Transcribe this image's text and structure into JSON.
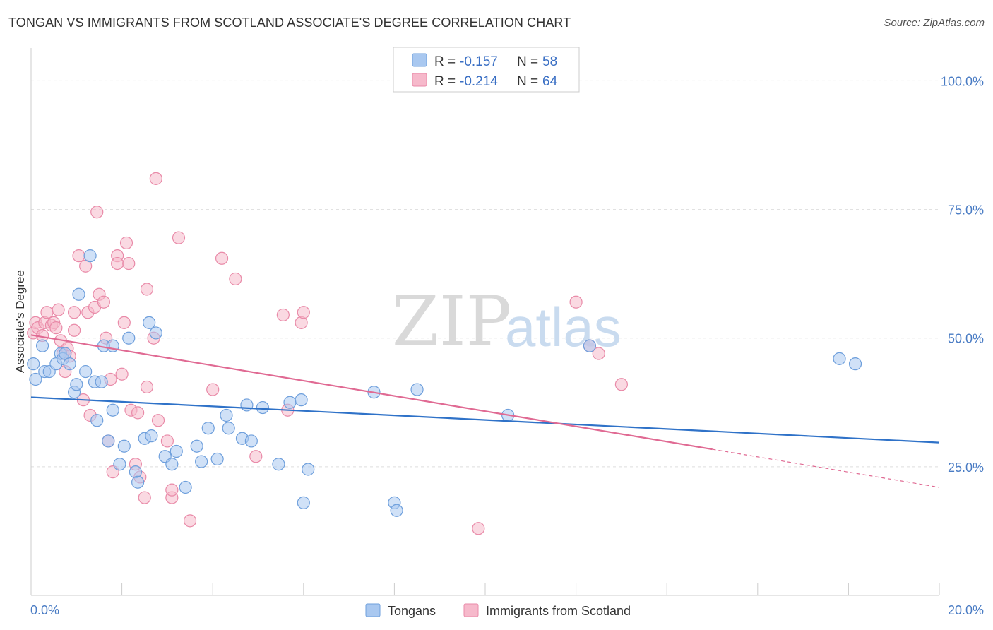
{
  "title": "TONGAN VS IMMIGRANTS FROM SCOTLAND ASSOCIATE'S DEGREE CORRELATION CHART",
  "source": "Source: ZipAtlas.com",
  "watermark": {
    "zip": "ZIP",
    "atlas": "atlas"
  },
  "colors": {
    "tongans_fill": "#a9c8f0",
    "tongans_stroke": "#6e9fdc",
    "tongans_line": "#2f72c8",
    "scotland_fill": "#f6b9cb",
    "scotland_stroke": "#e98aa8",
    "scotland_line": "#e06a93",
    "grid": "#dddddd",
    "tick_label": "#4a7cc4"
  },
  "legend": {
    "rows": [
      {
        "r_label": "R = ",
        "r_value": "-0.157",
        "n_label": "N = ",
        "n_value": "58",
        "series": "tongans"
      },
      {
        "r_label": "R = ",
        "r_value": "-0.214",
        "n_label": "N = ",
        "n_value": "64",
        "series": "scotland"
      }
    ]
  },
  "chart_data": {
    "type": "scatter",
    "xlabel": "",
    "ylabel": "Associate's Degree",
    "xlim": [
      0,
      20
    ],
    "ylim": [
      0,
      105
    ],
    "x_ticks": [
      {
        "value": 0,
        "label": "0.0%"
      },
      {
        "value": 20,
        "label": "20.0%"
      }
    ],
    "y_ticks": [
      {
        "value": 25,
        "label": "25.0%"
      },
      {
        "value": 50,
        "label": "50.0%"
      },
      {
        "value": 75,
        "label": "75.0%"
      },
      {
        "value": 100,
        "label": "100.0%"
      }
    ],
    "grid": true,
    "legend_position": "top-center",
    "series": [
      {
        "name": "Tongans",
        "key": "tongans",
        "trend": {
          "x0": 0,
          "y0": 38.5,
          "x1": 20,
          "y1": 29.7,
          "solid_until": 20
        },
        "points": [
          [
            0.05,
            45.0
          ],
          [
            0.1,
            42.0
          ],
          [
            0.25,
            48.5
          ],
          [
            0.3,
            43.5
          ],
          [
            0.4,
            43.5
          ],
          [
            0.55,
            45.0
          ],
          [
            0.65,
            47.0
          ],
          [
            0.7,
            46.0
          ],
          [
            0.75,
            47.0
          ],
          [
            0.85,
            45.0
          ],
          [
            0.95,
            39.5
          ],
          [
            1.0,
            41.0
          ],
          [
            1.05,
            58.5
          ],
          [
            1.2,
            43.5
          ],
          [
            1.3,
            66.0
          ],
          [
            1.4,
            41.5
          ],
          [
            1.45,
            34.0
          ],
          [
            1.55,
            41.5
          ],
          [
            1.6,
            48.5
          ],
          [
            1.7,
            30.0
          ],
          [
            1.8,
            36.0
          ],
          [
            1.8,
            48.5
          ],
          [
            1.95,
            25.5
          ],
          [
            2.05,
            29.0
          ],
          [
            2.15,
            50.0
          ],
          [
            2.3,
            24.0
          ],
          [
            2.35,
            22.0
          ],
          [
            2.5,
            30.5
          ],
          [
            2.6,
            53.0
          ],
          [
            2.65,
            31.0
          ],
          [
            2.75,
            51.0
          ],
          [
            2.95,
            27.0
          ],
          [
            3.1,
            25.5
          ],
          [
            3.2,
            28.0
          ],
          [
            3.4,
            21.0
          ],
          [
            3.65,
            29.0
          ],
          [
            3.75,
            26.0
          ],
          [
            3.9,
            32.5
          ],
          [
            4.1,
            26.5
          ],
          [
            4.3,
            35.0
          ],
          [
            4.35,
            32.5
          ],
          [
            4.65,
            30.5
          ],
          [
            4.75,
            37.0
          ],
          [
            4.85,
            30.0
          ],
          [
            5.1,
            36.5
          ],
          [
            5.45,
            25.5
          ],
          [
            5.7,
            37.5
          ],
          [
            5.95,
            38.0
          ],
          [
            6.0,
            18.0
          ],
          [
            6.1,
            24.5
          ],
          [
            7.55,
            39.5
          ],
          [
            8.0,
            18.0
          ],
          [
            8.05,
            16.5
          ],
          [
            8.5,
            40.0
          ],
          [
            10.5,
            35.0
          ],
          [
            12.3,
            48.5
          ],
          [
            17.8,
            46.0
          ],
          [
            18.15,
            45.0
          ]
        ]
      },
      {
        "name": "Immigrants from Scotland",
        "key": "scotland",
        "trend": {
          "x0": 0,
          "y0": 50.6,
          "x1": 20,
          "y1": 21.0,
          "solid_until": 15.0
        },
        "points": [
          [
            0.05,
            51.0
          ],
          [
            0.1,
            53.0
          ],
          [
            0.15,
            52.0
          ],
          [
            0.25,
            50.5
          ],
          [
            0.3,
            53.0
          ],
          [
            0.35,
            55.0
          ],
          [
            0.45,
            52.5
          ],
          [
            0.5,
            53.0
          ],
          [
            0.55,
            52.0
          ],
          [
            0.6,
            55.5
          ],
          [
            0.65,
            49.5
          ],
          [
            0.7,
            47.0
          ],
          [
            0.75,
            43.5
          ],
          [
            0.8,
            48.0
          ],
          [
            0.85,
            46.5
          ],
          [
            0.95,
            55.0
          ],
          [
            0.95,
            51.5
          ],
          [
            1.05,
            66.0
          ],
          [
            1.15,
            38.0
          ],
          [
            1.2,
            64.0
          ],
          [
            1.25,
            55.0
          ],
          [
            1.3,
            35.0
          ],
          [
            1.4,
            56.0
          ],
          [
            1.45,
            74.5
          ],
          [
            1.5,
            58.5
          ],
          [
            1.6,
            57.0
          ],
          [
            1.65,
            50.0
          ],
          [
            1.7,
            30.0
          ],
          [
            1.75,
            42.0
          ],
          [
            1.8,
            24.0
          ],
          [
            1.9,
            66.0
          ],
          [
            1.9,
            64.5
          ],
          [
            2.05,
            53.0
          ],
          [
            2.0,
            43.0
          ],
          [
            2.1,
            68.5
          ],
          [
            2.15,
            64.5
          ],
          [
            2.2,
            36.0
          ],
          [
            2.3,
            25.5
          ],
          [
            2.35,
            35.5
          ],
          [
            2.4,
            23.0
          ],
          [
            2.5,
            19.0
          ],
          [
            2.55,
            59.5
          ],
          [
            2.55,
            40.5
          ],
          [
            2.7,
            50.0
          ],
          [
            2.75,
            81.0
          ],
          [
            2.8,
            34.0
          ],
          [
            3.0,
            30.0
          ],
          [
            3.1,
            19.0
          ],
          [
            3.1,
            20.5
          ],
          [
            3.25,
            69.5
          ],
          [
            3.5,
            14.5
          ],
          [
            4.0,
            40.0
          ],
          [
            4.2,
            65.5
          ],
          [
            4.5,
            61.5
          ],
          [
            4.95,
            27.0
          ],
          [
            5.55,
            54.5
          ],
          [
            5.65,
            36.0
          ],
          [
            5.95,
            53.0
          ],
          [
            6.0,
            55.0
          ],
          [
            9.85,
            13.0
          ],
          [
            12.0,
            57.0
          ],
          [
            12.3,
            48.5
          ],
          [
            12.5,
            47.0
          ],
          [
            13.0,
            41.0
          ]
        ]
      }
    ]
  },
  "bottom_legend": [
    {
      "label": "Tongans",
      "series": "tongans"
    },
    {
      "label": "Immigrants from Scotland",
      "series": "scotland"
    }
  ]
}
